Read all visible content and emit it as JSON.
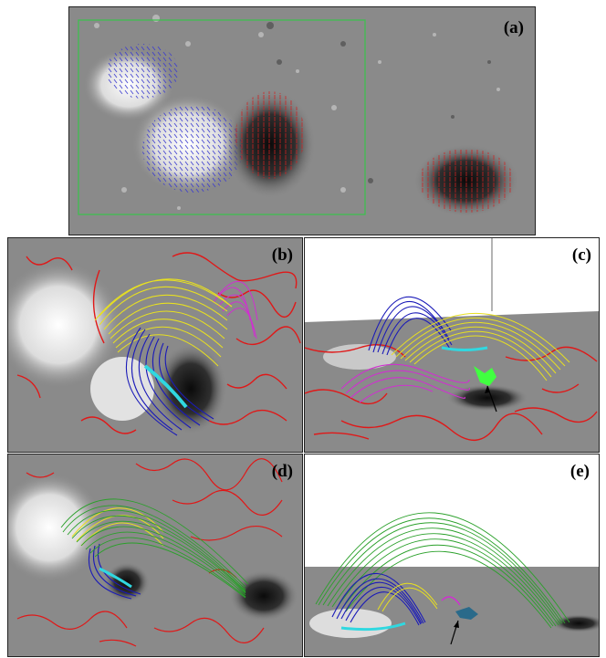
{
  "figure": {
    "panels": [
      {
        "id": "a",
        "label": "(a)"
      },
      {
        "id": "b",
        "label": "(b)"
      },
      {
        "id": "c",
        "label": "(c)"
      },
      {
        "id": "d",
        "label": "(d)"
      },
      {
        "id": "e",
        "label": "(e)"
      }
    ],
    "colors": {
      "background_gray": "#8a8a8a",
      "positive_field": "#f2f2f2",
      "negative_field": "#151515",
      "vector_positive": "#3a3ad0",
      "vector_negative": "#d02020",
      "roi_box": "#39c44a",
      "qsl_contour": "#e01818",
      "loops_yellow": "#e8e020",
      "loops_magenta": "#d030d0",
      "loops_blue": "#1a1ab8",
      "loops_green": "#2aa02a",
      "flux_rope_cyan": "#30d8e0",
      "footpoint_bright_green": "#40ff40"
    }
  }
}
